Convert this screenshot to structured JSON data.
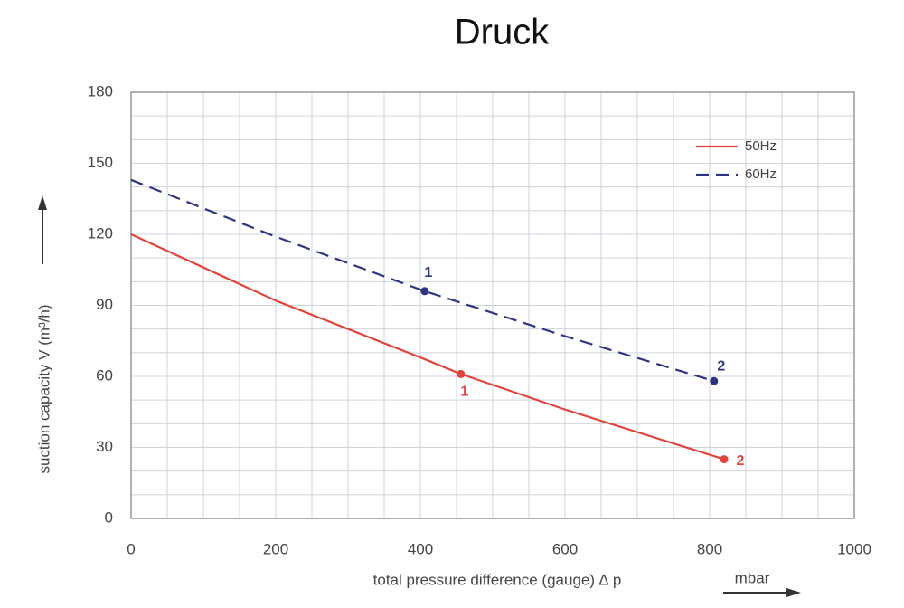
{
  "chart_data": {
    "type": "line",
    "title": "Druck",
    "xlabel": "total pressure difference (gauge) ∆ p",
    "xunit": "mbar",
    "ylabel": "suction capacity V (m³/h)",
    "xlim": [
      0,
      1000
    ],
    "xticks": [
      0,
      200,
      400,
      600,
      800,
      1000
    ],
    "ylim": [
      0,
      180
    ],
    "yticks": [
      0,
      30,
      60,
      90,
      120,
      150,
      180
    ],
    "minor_xticks": [
      50,
      100,
      150,
      250,
      300,
      350,
      450,
      500,
      550,
      650,
      700,
      750,
      850,
      900,
      950
    ],
    "minor_yticks": [
      10,
      20,
      40,
      50,
      70,
      80,
      100,
      110,
      130,
      140,
      160,
      170
    ],
    "grid": true,
    "legend": "upper right",
    "series": [
      {
        "name": "50Hz",
        "color": "#e0443c",
        "dash": false,
        "x": [
          0,
          200,
          400,
          456,
          600,
          820
        ],
        "values": [
          120,
          92,
          68,
          61,
          46,
          25
        ],
        "points": {
          "x": [
            456,
            820
          ],
          "values": [
            61,
            25
          ],
          "labels": [
            "1",
            "2"
          ]
        }
      },
      {
        "name": "60Hz",
        "color": "#2e3580",
        "dash": true,
        "x": [
          0,
          200,
          406,
          600,
          806
        ],
        "values": [
          143,
          119,
          96,
          77,
          58
        ],
        "points": {
          "x": [
            406,
            806
          ],
          "values": [
            96,
            58
          ],
          "labels": [
            "1",
            "2"
          ]
        }
      }
    ]
  }
}
